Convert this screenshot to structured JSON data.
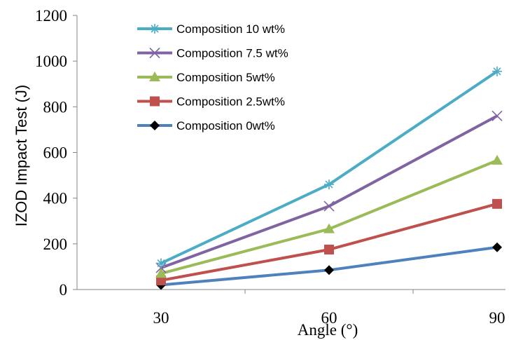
{
  "chart_data": {
    "type": "line",
    "title": "",
    "xlabel": "Angle (°)",
    "ylabel": "IZOD Impact Test (J)",
    "x": [
      30,
      60,
      90
    ],
    "x_tick_labels": [
      "30",
      "60",
      "90"
    ],
    "y_ticks": [
      0,
      200,
      400,
      600,
      800,
      1000,
      1200
    ],
    "y_tick_labels": [
      "0",
      "200",
      "400",
      "600",
      "800",
      "1000",
      "1200"
    ],
    "ylim": [
      0,
      1200
    ],
    "grid": false,
    "legend_position": "top-left",
    "series": [
      {
        "name": "Composition 10 wt%",
        "values": [
          115,
          460,
          955
        ],
        "color": "#4BACC6",
        "marker": "star"
      },
      {
        "name": "Composition 7.5 wt%",
        "values": [
          95,
          365,
          760
        ],
        "color": "#8064A2",
        "marker": "x"
      },
      {
        "name": "Composition 5wt%",
        "values": [
          70,
          265,
          565
        ],
        "color": "#9BBB59",
        "marker": "triangle"
      },
      {
        "name": "Composition 2.5wt%",
        "values": [
          40,
          175,
          375
        ],
        "color": "#C0504D",
        "marker": "square"
      },
      {
        "name": "Composition 0wt%",
        "values": [
          20,
          85,
          185
        ],
        "color": "#4F81BD",
        "marker": "diamond"
      }
    ]
  }
}
